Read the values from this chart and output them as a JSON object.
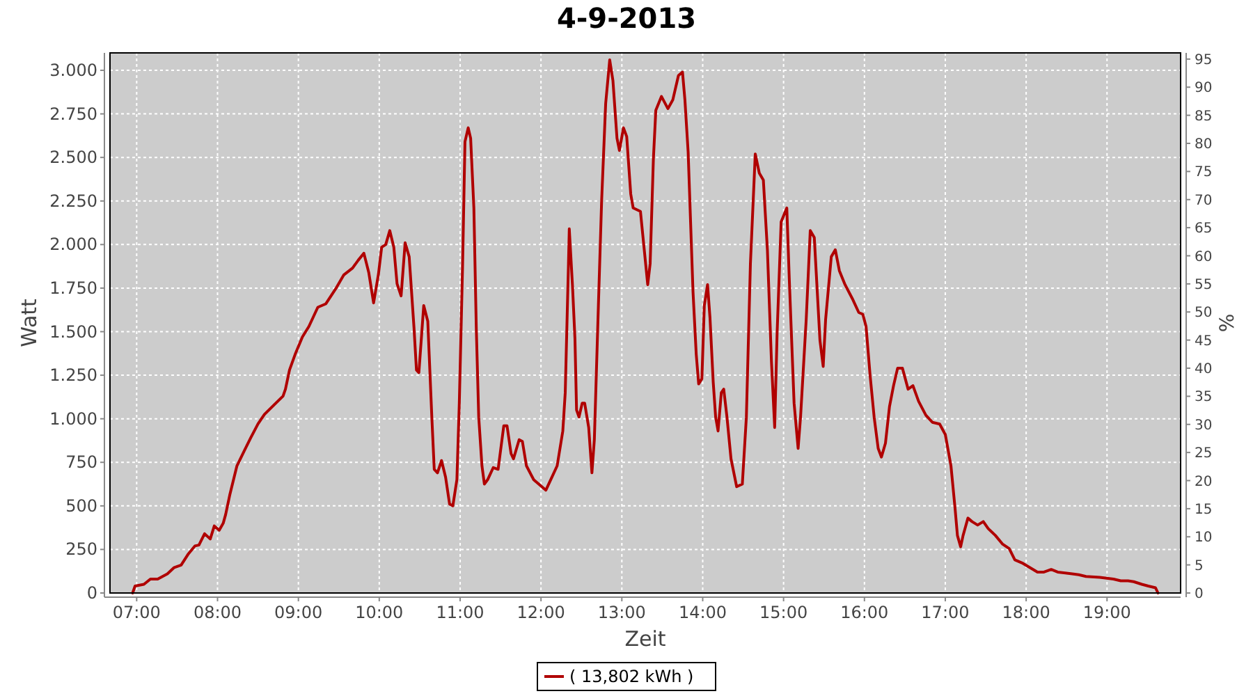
{
  "chart_data": {
    "type": "line",
    "title": "4-9-2013",
    "xlabel": "Zeit",
    "ylabel": "Watt",
    "y2label": "%",
    "xlim": [
      6.67,
      19.91
    ],
    "xticks": [
      {
        "value": 7,
        "label": "07:00"
      },
      {
        "value": 8,
        "label": "08:00"
      },
      {
        "value": 9,
        "label": "09:00"
      },
      {
        "value": 10,
        "label": "10:00"
      },
      {
        "value": 11,
        "label": "11:00"
      },
      {
        "value": 12,
        "label": "12:00"
      },
      {
        "value": 13,
        "label": "13:00"
      },
      {
        "value": 14,
        "label": "14:00"
      },
      {
        "value": 15,
        "label": "15:00"
      },
      {
        "value": 16,
        "label": "16:00"
      },
      {
        "value": 17,
        "label": "17:00"
      },
      {
        "value": 18,
        "label": "18:00"
      },
      {
        "value": 19,
        "label": "19:00"
      }
    ],
    "ylim": [
      0,
      3100
    ],
    "yticks": [
      0,
      250,
      500,
      750,
      {
        "value": 1000,
        "label": "1.000"
      },
      {
        "value": 1250,
        "label": "1.250"
      },
      {
        "value": 1500,
        "label": "1.500"
      },
      {
        "value": 1750,
        "label": "1.750"
      },
      {
        "value": 2000,
        "label": "2.000"
      },
      {
        "value": 2250,
        "label": "2.250"
      },
      {
        "value": 2500,
        "label": "2.500"
      },
      {
        "value": 2750,
        "label": "2.750"
      },
      {
        "value": 3000,
        "label": "3.000"
      }
    ],
    "y2lim": [
      0,
      96.1
    ],
    "y2ticks": [
      0,
      5,
      10,
      15,
      20,
      25,
      30,
      35,
      40,
      45,
      50,
      55,
      60,
      65,
      70,
      75,
      80,
      85,
      90,
      95
    ],
    "grid": true,
    "legend": "bottom",
    "marker": "none",
    "line_style": "solid",
    "series": [
      {
        "name": "( 13,802 kWh )",
        "color": "#b00000",
        "x": [
          6.95,
          6.98,
          7.09,
          7.17,
          7.26,
          7.38,
          7.46,
          7.55,
          7.64,
          7.72,
          7.77,
          7.84,
          7.91,
          7.96,
          8.02,
          8.07,
          8.1,
          8.15,
          8.24,
          8.33,
          8.41,
          8.5,
          8.58,
          8.7,
          8.81,
          8.84,
          8.89,
          8.96,
          9.05,
          9.13,
          9.24,
          9.34,
          9.46,
          9.56,
          9.67,
          9.74,
          9.81,
          9.87,
          9.93,
          9.99,
          10.03,
          10.08,
          10.13,
          10.18,
          10.22,
          10.27,
          10.32,
          10.37,
          10.43,
          10.46,
          10.49,
          10.55,
          10.6,
          10.65,
          10.68,
          10.72,
          10.77,
          10.82,
          10.87,
          10.91,
          10.96,
          10.99,
          11.03,
          11.06,
          11.1,
          11.13,
          11.17,
          11.2,
          11.23,
          11.27,
          11.3,
          11.34,
          11.41,
          11.47,
          11.54,
          11.58,
          11.63,
          11.66,
          11.73,
          11.77,
          11.82,
          11.91,
          12.01,
          12.06,
          12.13,
          12.2,
          12.27,
          12.3,
          12.34,
          12.35,
          12.39,
          12.42,
          12.44,
          12.47,
          12.51,
          12.54,
          12.59,
          12.63,
          12.66,
          12.71,
          12.75,
          12.8,
          12.85,
          12.89,
          12.94,
          12.97,
          13.02,
          13.06,
          13.11,
          13.14,
          13.23,
          13.26,
          13.32,
          13.35,
          13.39,
          13.42,
          13.49,
          13.57,
          13.63,
          13.7,
          13.75,
          13.78,
          13.82,
          13.85,
          13.88,
          13.92,
          13.95,
          13.99,
          14.02,
          14.06,
          14.09,
          14.13,
          14.16,
          14.19,
          14.23,
          14.26,
          14.3,
          14.35,
          14.42,
          14.49,
          14.54,
          14.59,
          14.65,
          14.7,
          14.75,
          14.8,
          14.85,
          14.89,
          14.92,
          14.97,
          15.04,
          15.07,
          15.13,
          15.18,
          15.21,
          15.28,
          15.33,
          15.38,
          15.45,
          15.49,
          15.52,
          15.59,
          15.64,
          15.69,
          15.76,
          15.85,
          15.93,
          15.98,
          16.02,
          16.07,
          16.12,
          16.17,
          16.21,
          16.26,
          16.31,
          16.36,
          16.41,
          16.47,
          16.54,
          16.6,
          16.67,
          16.76,
          16.84,
          16.93,
          17.0,
          17.07,
          17.12,
          17.15,
          17.19,
          17.22,
          17.28,
          17.33,
          17.4,
          17.47,
          17.53,
          17.62,
          17.71,
          17.79,
          17.86,
          17.96,
          18.05,
          18.14,
          18.22,
          18.31,
          18.39,
          18.57,
          18.65,
          18.74,
          18.91,
          19.08,
          19.17,
          19.26,
          19.33,
          19.43,
          19.51,
          19.6,
          19.63
        ],
        "values": [
          0,
          40,
          50,
          80,
          80,
          110,
          145,
          160,
          225,
          270,
          275,
          340,
          310,
          385,
          360,
          400,
          450,
          560,
          730,
          815,
          890,
          970,
          1025,
          1080,
          1130,
          1170,
          1280,
          1370,
          1470,
          1530,
          1640,
          1660,
          1745,
          1825,
          1865,
          1910,
          1950,
          1840,
          1665,
          1830,
          1985,
          2000,
          2080,
          1985,
          1775,
          1705,
          2010,
          1930,
          1520,
          1280,
          1265,
          1650,
          1560,
          1010,
          710,
          690,
          760,
          665,
          510,
          500,
          650,
          1090,
          1870,
          2590,
          2670,
          2610,
          2210,
          1520,
          1010,
          730,
          625,
          650,
          720,
          710,
          960,
          960,
          800,
          770,
          880,
          870,
          730,
          650,
          610,
          590,
          660,
          730,
          930,
          1150,
          1890,
          2090,
          1760,
          1460,
          1050,
          1010,
          1090,
          1090,
          950,
          690,
          880,
          1650,
          2250,
          2810,
          3060,
          2940,
          2610,
          2540,
          2670,
          2620,
          2290,
          2210,
          2190,
          2050,
          1770,
          1890,
          2490,
          2770,
          2850,
          2780,
          2830,
          2970,
          2990,
          2830,
          2530,
          2130,
          1730,
          1370,
          1200,
          1230,
          1650,
          1770,
          1580,
          1210,
          1010,
          930,
          1150,
          1170,
          1010,
          770,
          610,
          625,
          1010,
          1890,
          2520,
          2410,
          2370,
          1970,
          1330,
          950,
          1490,
          2130,
          2210,
          1810,
          1090,
          830,
          1010,
          1570,
          2080,
          2040,
          1450,
          1300,
          1570,
          1930,
          1970,
          1850,
          1770,
          1690,
          1610,
          1600,
          1530,
          1250,
          1010,
          830,
          780,
          860,
          1070,
          1190,
          1290,
          1290,
          1170,
          1190,
          1100,
          1020,
          980,
          970,
          910,
          730,
          490,
          330,
          265,
          330,
          430,
          410,
          390,
          410,
          370,
          330,
          280,
          255,
          190,
          170,
          145,
          120,
          120,
          135,
          120,
          110,
          105,
          95,
          90,
          80,
          70,
          70,
          65,
          50,
          40,
          30,
          0
        ]
      }
    ]
  }
}
